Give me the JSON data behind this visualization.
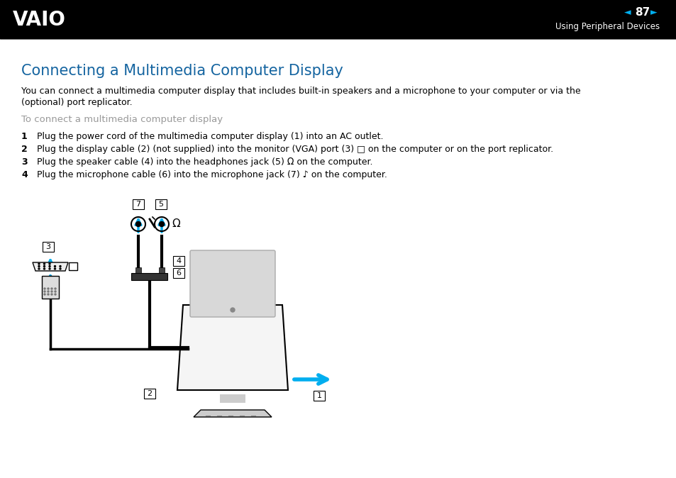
{
  "page_bg": "#ffffff",
  "header_bg": "#000000",
  "header_text_color": "#ffffff",
  "header_page_num": "87",
  "header_section": "Using Peripheral Devices",
  "title": "Connecting a Multimedia Computer Display",
  "title_color": "#1464A0",
  "body_text_color": "#000000",
  "gray_text_color": "#999999",
  "cyan_color": "#00AEEF",
  "intro_line1": "You can connect a multimedia computer display that includes built-in speakers and a microphone to your computer or via the",
  "intro_line2": "(optional) port replicator.",
  "subheading": "To connect a multimedia computer display",
  "step1_num": "1",
  "step1_text": "Plug the power cord of the multimedia computer display (1) into an AC outlet.",
  "step2_num": "2",
  "step2_text": "Plug the display cable (2) (not supplied) into the monitor (VGA) port (3) □ on the computer or on the port replicator.",
  "step3_num": "3",
  "step3_text": "Plug the speaker cable (4) into the headphones jack (5) Ω on the computer.",
  "step4_num": "4",
  "step4_text": "Plug the microphone cable (6) into the microphone jack (7) ♪ on the computer."
}
